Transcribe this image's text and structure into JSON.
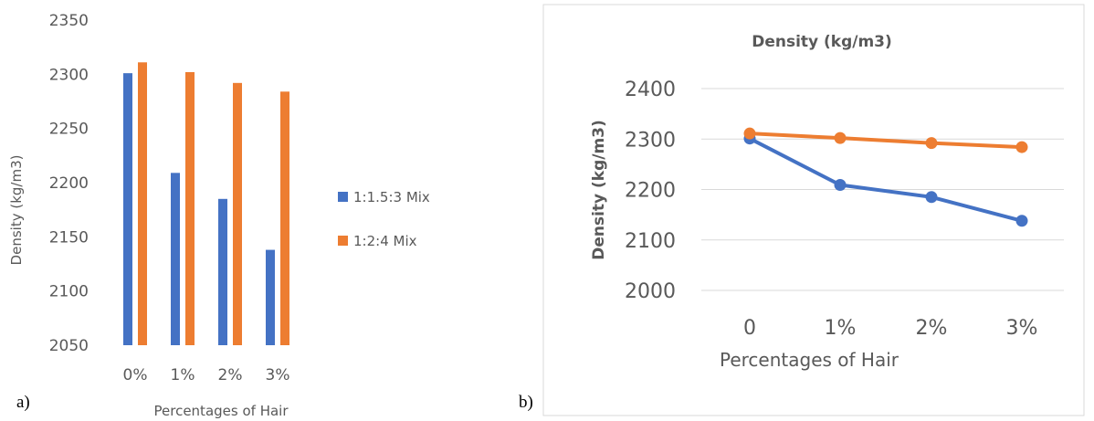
{
  "panel_labels": [
    "a)",
    "b)"
  ],
  "colors": {
    "series1": "#4472C4",
    "series2": "#ED7D31",
    "grid": "#D9D9D9",
    "text": "#595959"
  },
  "chart_data": [
    {
      "type": "bar",
      "categories": [
        "0%",
        "1%",
        "2%",
        "3%"
      ],
      "series": [
        {
          "name": "1:1.5:3 Mix",
          "values": [
            2301,
            2209,
            2185,
            2138
          ]
        },
        {
          "name": "1:2:4 Mix",
          "values": [
            2311,
            2302,
            2292,
            2284
          ]
        }
      ],
      "title": "",
      "xlabel": "Percentages of Hair",
      "ylabel": "Density (kg/m3)",
      "ylim": [
        2050,
        2350
      ],
      "yticks": [
        "2050",
        "2100",
        "2150",
        "2200",
        "2250",
        "2300",
        "2350"
      ],
      "grid": false,
      "legend": "right"
    },
    {
      "type": "line",
      "categories": [
        "0",
        "1%",
        "2%",
        "3%"
      ],
      "series": [
        {
          "values": [
            2301,
            2209,
            2185,
            2138
          ]
        },
        {
          "values": [
            2311,
            2302,
            2292,
            2284
          ]
        }
      ],
      "title": "Density (kg/m3)",
      "xlabel": "Percentages of Hair",
      "ylabel": "Density (kg/m3)",
      "ylim": [
        2000,
        2400
      ],
      "yticks": [
        "2000",
        "2100",
        "2200",
        "2300",
        "2400"
      ],
      "grid": true,
      "legend": "none"
    }
  ]
}
